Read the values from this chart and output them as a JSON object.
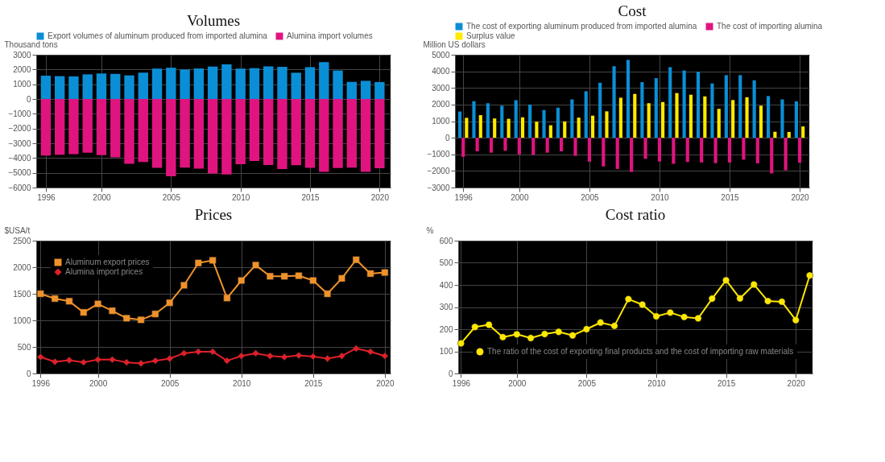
{
  "chart_data": [
    {
      "type": "bar",
      "title": "Volumes",
      "ylabel": "Thousand tons",
      "x": [
        1996,
        1997,
        1998,
        1999,
        2000,
        2001,
        2002,
        2003,
        2004,
        2005,
        2006,
        2007,
        2008,
        2009,
        2010,
        2011,
        2012,
        2013,
        2014,
        2015,
        2016,
        2017,
        2018,
        2019,
        2020
      ],
      "series": [
        {
          "name": "Export volumes of aluminum produced from imported alumina",
          "color": "#0a8fd6",
          "values": [
            1580,
            1550,
            1530,
            1670,
            1730,
            1700,
            1600,
            1780,
            2060,
            2120,
            2000,
            2070,
            2200,
            2350,
            2060,
            2090,
            2210,
            2180,
            1780,
            2160,
            2500,
            1930,
            1160,
            1230,
            1150
          ]
        },
        {
          "name": "Alumina import volumes",
          "color": "#e0147f",
          "values": [
            -3830,
            -3780,
            -3730,
            -3640,
            -3810,
            -3950,
            -4390,
            -4270,
            -4660,
            -5240,
            -4650,
            -4720,
            -5050,
            -5120,
            -4420,
            -4200,
            -4470,
            -4750,
            -4480,
            -4660,
            -4930,
            -4680,
            -4650,
            -4930,
            -4690
          ]
        }
      ],
      "xlim": [
        1995.6,
        2020.5
      ],
      "xticks": [
        1996,
        2000,
        2005,
        2010,
        2015,
        2020
      ],
      "ylim": [
        -6000,
        3000
      ],
      "yticks": [
        -6000,
        -5000,
        -4000,
        -3000,
        -2000,
        -1000,
        0,
        1000,
        2000,
        3000
      ],
      "grid": true,
      "legend": "top",
      "stacked": true
    },
    {
      "type": "bar",
      "title": "Cost",
      "ylabel": "Million US dollars",
      "x": [
        1996,
        1997,
        1998,
        1999,
        2000,
        2001,
        2002,
        2003,
        2004,
        2005,
        2006,
        2007,
        2008,
        2009,
        2010,
        2011,
        2012,
        2013,
        2014,
        2015,
        2016,
        2017,
        2018,
        2019,
        2020
      ],
      "series": [
        {
          "name": "The cost of exporting aluminum produced from imported alumina",
          "color": "#0a8fd6",
          "values": [
            1580,
            2200,
            2080,
            1930,
            2260,
            2000,
            1670,
            1810,
            2310,
            2800,
            3310,
            4310,
            4690,
            3350,
            3590,
            4250,
            4050,
            3980,
            3270,
            3770,
            3770,
            3460,
            2510,
            2310,
            2190
          ]
        },
        {
          "name": "The cost of importing alumina",
          "color": "#e0147f",
          "values": [
            -1150,
            -820,
            -900,
            -780,
            -1000,
            -1030,
            -900,
            -820,
            -1090,
            -1440,
            -1730,
            -1880,
            -2060,
            -1270,
            -1430,
            -1570,
            -1460,
            -1490,
            -1530,
            -1490,
            -1320,
            -1540,
            -2150,
            -1960,
            -1500
          ]
        },
        {
          "name": "Surplus value",
          "color": "#ffea00",
          "values": [
            1200,
            1360,
            1160,
            1140,
            1230,
            970,
            750,
            980,
            1210,
            1330,
            1590,
            2410,
            2640,
            2080,
            2150,
            2690,
            2590,
            2490,
            1740,
            2270,
            2440,
            1930,
            360,
            350,
            680
          ]
        }
      ],
      "xlim": [
        1995.7,
        2020.4
      ],
      "xticks": [
        1996,
        2000,
        2005,
        2010,
        2015,
        2020
      ],
      "ylim": [
        -3000,
        5000
      ],
      "yticks": [
        -3000,
        -2000,
        -1000,
        0,
        1000,
        2000,
        3000,
        4000,
        5000
      ],
      "grid": true,
      "legend": "top"
    },
    {
      "type": "line",
      "title": "Prices",
      "ylabel": "$USA/t",
      "x": [
        1996,
        1997,
        1998,
        1999,
        2000,
        2001,
        2002,
        2003,
        2004,
        2005,
        2006,
        2007,
        2008,
        2009,
        2010,
        2011,
        2012,
        2013,
        2014,
        2015,
        2016,
        2017,
        2018,
        2019,
        2020
      ],
      "series": [
        {
          "name": "Aluminum export prices",
          "color": "#f0922b",
          "marker": "square",
          "values": [
            1500,
            1410,
            1360,
            1150,
            1310,
            1180,
            1040,
            1010,
            1120,
            1330,
            1660,
            2080,
            2130,
            1420,
            1750,
            2040,
            1830,
            1830,
            1840,
            1750,
            1500,
            1790,
            2140,
            1880,
            1900
          ]
        },
        {
          "name": "Alumina import prices",
          "color": "#e0202a",
          "marker": "diamond",
          "values": [
            310,
            220,
            250,
            210,
            260,
            260,
            210,
            190,
            240,
            280,
            380,
            410,
            410,
            240,
            330,
            380,
            330,
            310,
            340,
            320,
            280,
            330,
            470,
            410,
            330
          ]
        }
      ],
      "xlim": [
        1995.7,
        2020.4
      ],
      "xticks": [
        1996,
        2000,
        2005,
        2010,
        2015,
        2020
      ],
      "ylim": [
        0,
        2500
      ],
      "yticks": [
        0,
        500,
        1000,
        1500,
        2000,
        2500
      ],
      "grid": true,
      "legend": "top left"
    },
    {
      "type": "line",
      "title": "Cost ratio",
      "ylabel": "%",
      "x": [
        1996,
        1997,
        1998,
        1999,
        2000,
        2001,
        2002,
        2003,
        2004,
        2005,
        2006,
        2007,
        2008,
        2009,
        2010,
        2011,
        2012,
        2013,
        2014,
        2015,
        2016,
        2017,
        2018,
        2019,
        2020,
        2021
      ],
      "series": [
        {
          "name": "The ratio of the cost of exporting final products and the cost of importing raw materials",
          "color": "#ffe800",
          "marker": "circle",
          "values": [
            136,
            210,
            220,
            164,
            177,
            160,
            178,
            188,
            172,
            200,
            230,
            215,
            336,
            311,
            258,
            275,
            255,
            249,
            338,
            421,
            339,
            402,
            327,
            324,
            241,
            443
          ]
        }
      ],
      "xlim": [
        1995.8,
        2021.2
      ],
      "xticks": [
        1996,
        2000,
        2005,
        2010,
        2015,
        2020
      ],
      "ylim": [
        0,
        600
      ],
      "yticks": [
        0,
        100,
        200,
        300,
        400,
        500,
        600
      ],
      "grid": true,
      "legend": "bottom left"
    }
  ]
}
